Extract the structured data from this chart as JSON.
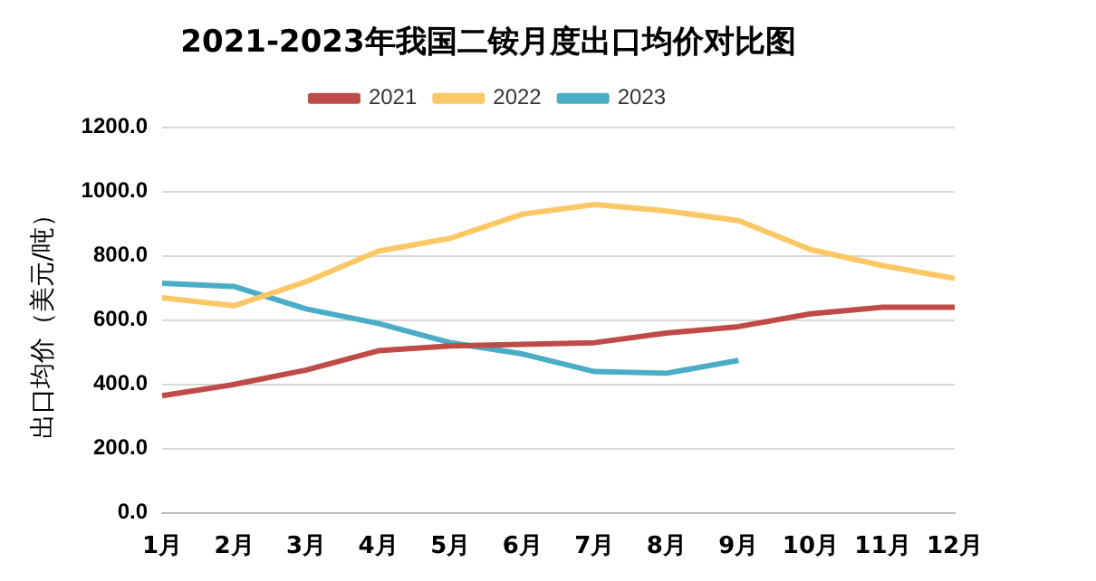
{
  "chart_data": {
    "type": "line",
    "title": "2021-2023年我国二铵月度出口均价对比图",
    "ylabel": "出口均价（美元/吨）",
    "categories": [
      "1月",
      "2月",
      "3月",
      "4月",
      "5月",
      "6月",
      "7月",
      "8月",
      "9月",
      "10月",
      "11月",
      "12月"
    ],
    "series": [
      {
        "name": "2021",
        "color": "#be4b48",
        "values": [
          365,
          400,
          445,
          505,
          520,
          525,
          530,
          560,
          580,
          620,
          640,
          640
        ]
      },
      {
        "name": "2022",
        "color": "#fcc765",
        "values": [
          670,
          645,
          720,
          815,
          855,
          930,
          960,
          940,
          910,
          820,
          770,
          730
        ]
      },
      {
        "name": "2023",
        "color": "#4bacc6",
        "values": [
          715,
          705,
          635,
          590,
          530,
          495,
          440,
          435,
          475,
          null,
          null,
          null
        ]
      }
    ],
    "ylim": [
      0,
      1200
    ],
    "yticks": [
      {
        "value": 0,
        "label": "0.0"
      },
      {
        "value": 200,
        "label": "200.0"
      },
      {
        "value": 400,
        "label": "400.0"
      },
      {
        "value": 600,
        "label": "600.0"
      },
      {
        "value": 800,
        "label": "800.0"
      },
      {
        "value": 1000,
        "label": "1000.0"
      },
      {
        "value": 1200,
        "label": "1200.0"
      }
    ],
    "grid": "y",
    "legend": "top",
    "marker": "none",
    "line_style": "solid"
  }
}
